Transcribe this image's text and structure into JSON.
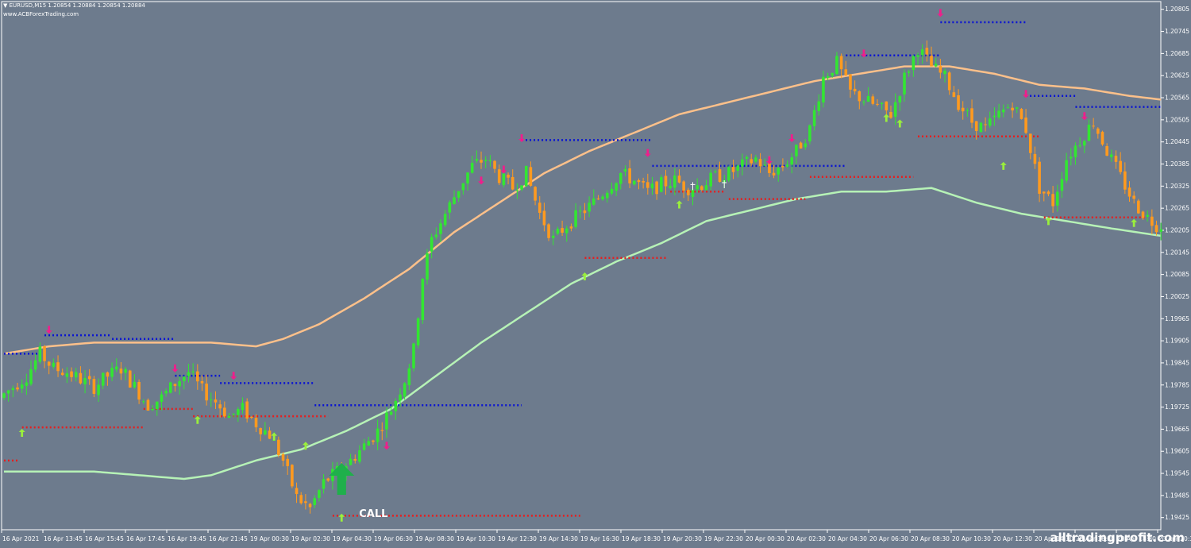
{
  "header": {
    "title": "EURUSD,M15  1.20854 1.20884 1.20854 1.20884",
    "site": "www.ACBForexTrading.com"
  },
  "watermark": "alltradingprofit.com",
  "call_label": "CALL",
  "colors": {
    "background": "#6d7b8d",
    "bull": "#32e632",
    "bear": "#ff9a1f",
    "upper_band": "#fcc08a",
    "lower_band": "#b6f2b6",
    "resistance": "#0a14d2",
    "support": "#e61e1e",
    "up_arrow": "#9aef3c",
    "down_arrow": "#ef1e8c",
    "call_arrow": "#1fb04b",
    "text": "#ffffff"
  },
  "chart_data": {
    "type": "candlestick",
    "symbol": "EURUSD",
    "timeframe": "M15",
    "ylim": [
      1.19392,
      1.20826
    ],
    "y_ticks": [
      "1.20805",
      "1.20745",
      "1.20685",
      "1.20625",
      "1.20565",
      "1.20505",
      "1.20445",
      "1.20385",
      "1.20325",
      "1.20265",
      "1.20205",
      "1.20145",
      "1.20085",
      "1.20025",
      "1.19965",
      "1.19905",
      "1.19845",
      "1.19785",
      "1.19725",
      "1.19665",
      "1.19605",
      "1.19545",
      "1.19485",
      "1.19425"
    ],
    "x_ticks": [
      "16 Apr 2021",
      "16 Apr 13:45",
      "16 Apr 15:45",
      "16 Apr 17:45",
      "16 Apr 19:45",
      "16 Apr 21:45",
      "19 Apr 00:30",
      "19 Apr 02:30",
      "19 Apr 04:30",
      "19 Apr 06:30",
      "19 Apr 08:30",
      "19 Apr 10:30",
      "19 Apr 12:30",
      "19 Apr 14:30",
      "19 Apr 16:30",
      "19 Apr 18:30",
      "19 Apr 20:30",
      "19 Apr 22:30",
      "20 Apr 00:30",
      "20 Apr 02:30",
      "20 Apr 04:30",
      "20 Apr 06:30",
      "20 Apr 08:30",
      "20 Apr 10:30",
      "20 Apr 12:30",
      "20 Apr 14:30",
      "20 Apr 16:30",
      "20 Apr 18:30",
      "20 Apr 20:30"
    ],
    "candle_anchors": [
      [
        0,
        1.1975
      ],
      [
        3,
        1.1978
      ],
      [
        6,
        1.1981
      ],
      [
        9,
        1.1987
      ],
      [
        12,
        1.1983
      ],
      [
        15,
        1.1982
      ],
      [
        18,
        1.198
      ],
      [
        21,
        1.1978
      ],
      [
        24,
        1.1981
      ],
      [
        27,
        1.1983
      ],
      [
        30,
        1.1978
      ],
      [
        33,
        1.1973
      ],
      [
        36,
        1.1975
      ],
      [
        39,
        1.1979
      ],
      [
        42,
        1.1982
      ],
      [
        45,
        1.1977
      ],
      [
        48,
        1.1974
      ],
      [
        51,
        1.197
      ],
      [
        54,
        1.1972
      ],
      [
        57,
        1.1968
      ],
      [
        60,
        1.1965
      ],
      [
        63,
        1.1958
      ],
      [
        66,
        1.1948
      ],
      [
        69,
        1.1945
      ],
      [
        72,
        1.1952
      ],
      [
        75,
        1.1955
      ],
      [
        78,
        1.1958
      ],
      [
        81,
        1.1962
      ],
      [
        84,
        1.1966
      ],
      [
        87,
        1.1972
      ],
      [
        90,
        1.198
      ],
      [
        92,
        1.1988
      ],
      [
        94,
        1.2008
      ],
      [
        96,
        1.2018
      ],
      [
        99,
        1.2025
      ],
      [
        102,
        1.2032
      ],
      [
        105,
        1.2038
      ],
      [
        108,
        1.204
      ],
      [
        111,
        1.2035
      ],
      [
        114,
        1.2032
      ],
      [
        117,
        1.2036
      ],
      [
        120,
        1.2025
      ],
      [
        123,
        1.2018
      ],
      [
        126,
        1.2022
      ],
      [
        129,
        1.2025
      ],
      [
        132,
        1.2028
      ],
      [
        135,
        1.2032
      ],
      [
        138,
        1.2036
      ],
      [
        141,
        1.2034
      ],
      [
        144,
        1.2031
      ],
      [
        147,
        1.2033
      ],
      [
        150,
        1.2034
      ],
      [
        153,
        1.2032
      ],
      [
        156,
        1.2033
      ],
      [
        159,
        1.2035
      ],
      [
        162,
        1.2036
      ],
      [
        165,
        1.2038
      ],
      [
        168,
        1.204
      ],
      [
        171,
        1.2036
      ],
      [
        174,
        1.2038
      ],
      [
        177,
        1.2042
      ],
      [
        180,
        1.2048
      ],
      [
        183,
        1.2062
      ],
      [
        186,
        1.2066
      ],
      [
        189,
        1.2058
      ],
      [
        192,
        1.2056
      ],
      [
        195,
        1.2054
      ],
      [
        198,
        1.2052
      ],
      [
        201,
        1.2062
      ],
      [
        204,
        1.207
      ],
      [
        207,
        1.2065
      ],
      [
        210,
        1.2062
      ],
      [
        213,
        1.2055
      ],
      [
        216,
        1.205
      ],
      [
        219,
        1.2048
      ],
      [
        222,
        1.2052
      ],
      [
        225,
        1.2055
      ],
      [
        228,
        1.2048
      ],
      [
        231,
        1.2032
      ],
      [
        234,
        1.2028
      ],
      [
        237,
        1.204
      ],
      [
        240,
        1.2045
      ],
      [
        243,
        1.205
      ],
      [
        246,
        1.2042
      ],
      [
        249,
        1.2035
      ],
      [
        252,
        1.2028
      ],
      [
        255,
        1.2024
      ],
      [
        257,
        1.2022
      ]
    ],
    "upper_band_anchors": [
      [
        0,
        1.1987
      ],
      [
        10,
        1.1989
      ],
      [
        20,
        1.199
      ],
      [
        30,
        1.199
      ],
      [
        38,
        1.199
      ],
      [
        46,
        1.199
      ],
      [
        56,
        1.1989
      ],
      [
        62,
        1.1991
      ],
      [
        70,
        1.1995
      ],
      [
        80,
        1.2002
      ],
      [
        90,
        1.201
      ],
      [
        100,
        1.202
      ],
      [
        110,
        1.2028
      ],
      [
        120,
        1.2036
      ],
      [
        130,
        1.2042
      ],
      [
        140,
        1.2047
      ],
      [
        150,
        1.2052
      ],
      [
        160,
        1.2055
      ],
      [
        170,
        1.2058
      ],
      [
        180,
        1.2061
      ],
      [
        190,
        1.2063
      ],
      [
        200,
        1.2065
      ],
      [
        210,
        1.2065
      ],
      [
        220,
        1.2063
      ],
      [
        230,
        1.206
      ],
      [
        240,
        1.2059
      ],
      [
        250,
        1.2057
      ],
      [
        257,
        1.2056
      ]
    ],
    "lower_band_anchors": [
      [
        0,
        1.1955
      ],
      [
        10,
        1.1955
      ],
      [
        20,
        1.1955
      ],
      [
        30,
        1.1954
      ],
      [
        40,
        1.1953
      ],
      [
        46,
        1.1954
      ],
      [
        56,
        1.1958
      ],
      [
        66,
        1.1961
      ],
      [
        76,
        1.1966
      ],
      [
        86,
        1.1972
      ],
      [
        96,
        1.1981
      ],
      [
        106,
        1.199
      ],
      [
        116,
        1.1998
      ],
      [
        126,
        1.2006
      ],
      [
        136,
        1.2012
      ],
      [
        146,
        1.2017
      ],
      [
        156,
        1.2023
      ],
      [
        166,
        1.2026
      ],
      [
        176,
        1.2029
      ],
      [
        186,
        1.2031
      ],
      [
        196,
        1.2031
      ],
      [
        206,
        1.2032
      ],
      [
        216,
        1.2028
      ],
      [
        226,
        1.2025
      ],
      [
        236,
        1.2023
      ],
      [
        246,
        1.2021
      ],
      [
        257,
        1.2019
      ]
    ],
    "resistance_lines": [
      [
        0,
        8,
        1.1987
      ],
      [
        9,
        24,
        1.1992
      ],
      [
        24,
        38,
        1.1991
      ],
      [
        38,
        48,
        1.1981
      ],
      [
        48,
        69,
        1.1979
      ],
      [
        69,
        115,
        1.1973
      ],
      [
        115,
        144,
        1.2045
      ],
      [
        144,
        187,
        1.2038
      ],
      [
        187,
        208,
        1.2068
      ],
      [
        208,
        227,
        1.2077
      ],
      [
        227,
        238,
        1.2057
      ],
      [
        238,
        257,
        1.2054
      ]
    ],
    "support_lines": [
      [
        0,
        3,
        1.1958
      ],
      [
        4,
        31,
        1.1967
      ],
      [
        31,
        42,
        1.1972
      ],
      [
        42,
        72,
        1.197
      ],
      [
        73,
        128,
        1.1943
      ],
      [
        129,
        147,
        1.2013
      ],
      [
        148,
        160,
        1.2031
      ],
      [
        161,
        178,
        1.2029
      ],
      [
        179,
        202,
        1.2035
      ],
      [
        203,
        230,
        1.2046
      ],
      [
        231,
        254,
        1.2024
      ]
    ],
    "up_arrows": [
      [
        4,
        1.19655
      ],
      [
        43,
        1.1969
      ],
      [
        60,
        1.19645
      ],
      [
        67,
        1.1962
      ],
      [
        75,
        1.19425
      ],
      [
        129,
        1.2008
      ],
      [
        150,
        1.20275
      ],
      [
        196,
        1.2051
      ],
      [
        199,
        1.20495
      ],
      [
        222,
        1.2038
      ],
      [
        232,
        1.2023
      ],
      [
        251,
        1.20225
      ]
    ],
    "down_arrows": [
      [
        10,
        1.19935
      ],
      [
        38,
        1.1983
      ],
      [
        51,
        1.1981
      ],
      [
        85,
        1.1962
      ],
      [
        106,
        1.2034
      ],
      [
        111,
        1.2037
      ],
      [
        115,
        1.20455
      ],
      [
        143,
        1.20415
      ],
      [
        170,
        1.20395
      ],
      [
        175,
        1.20455
      ],
      [
        191,
        1.20685
      ],
      [
        208,
        1.20795
      ],
      [
        227,
        1.20575
      ],
      [
        240,
        1.20515
      ]
    ],
    "crosses": [
      [
        153,
        1.20325
      ],
      [
        160,
        1.2033
      ]
    ],
    "call_arrow": [
      75,
      1.1953
    ]
  }
}
